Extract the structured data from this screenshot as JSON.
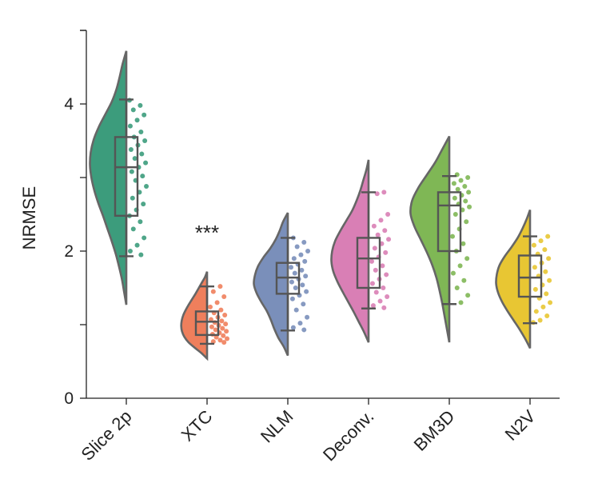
{
  "chart_data": {
    "type": "raincloud",
    "title": "",
    "xlabel": "",
    "ylabel": "NRMSE",
    "ylim": [
      0,
      5
    ],
    "yticks": [
      0,
      2,
      4
    ],
    "categories": [
      "Slice 2p",
      "XTC",
      "NLM",
      "Deconv.",
      "BM3D",
      "N2V"
    ],
    "colors": [
      "#3c9c7c",
      "#ef7f5c",
      "#7a8fba",
      "#d97fb5",
      "#7fb755",
      "#e8c633"
    ],
    "annotation": {
      "text": "***",
      "category": "XTC",
      "y": 2.35
    },
    "series": [
      {
        "name": "Slice 2p",
        "box": {
          "whisker_low": 1.93,
          "q1": 2.48,
          "median": 3.14,
          "q3": 3.55,
          "whisker_high": 4.06
        },
        "violin": {
          "min": 1.27,
          "max": 4.72,
          "max_halfwidth": 0.45,
          "profile": [
            0.0,
            0.06,
            0.12,
            0.2,
            0.29,
            0.4,
            0.52,
            0.64,
            0.77,
            0.88,
            0.96,
            1.0,
            0.98,
            0.9,
            0.76,
            0.58,
            0.4,
            0.27,
            0.18,
            0.1,
            0.0
          ]
        },
        "points": [
          4.05,
          3.98,
          3.92,
          3.85,
          3.78,
          3.7,
          3.62,
          3.55,
          3.5,
          3.44,
          3.38,
          3.32,
          3.26,
          3.2,
          3.14,
          3.08,
          3.02,
          2.96,
          2.88,
          2.8,
          2.72,
          2.64,
          2.56,
          2.48,
          2.4,
          2.3,
          2.18,
          2.08,
          2.0,
          1.95
        ]
      },
      {
        "name": "XTC",
        "box": {
          "whisker_low": 0.74,
          "q1": 0.86,
          "median": 1.04,
          "q3": 1.18,
          "whisker_high": 1.52
        },
        "violin": {
          "min": 0.54,
          "max": 1.72,
          "max_halfwidth": 0.32,
          "profile": [
            0.0,
            0.22,
            0.48,
            0.72,
            0.88,
            0.97,
            1.0,
            0.98,
            0.92,
            0.82,
            0.7,
            0.57,
            0.44,
            0.32,
            0.2,
            0.08,
            0.0
          ]
        },
        "points": [
          1.52,
          1.45,
          1.38,
          1.3,
          1.24,
          1.2,
          1.16,
          1.13,
          1.1,
          1.07,
          1.05,
          1.03,
          1.01,
          0.99,
          0.97,
          0.95,
          0.93,
          0.91,
          0.89,
          0.87,
          0.85,
          0.83,
          0.81,
          0.79,
          0.77,
          0.76
        ]
      },
      {
        "name": "NLM",
        "box": {
          "whisker_low": 0.92,
          "q1": 1.42,
          "median": 1.64,
          "q3": 1.84,
          "whisker_high": 2.18
        },
        "violin": {
          "min": 0.58,
          "max": 2.52,
          "max_halfwidth": 0.42,
          "profile": [
            0.0,
            0.12,
            0.28,
            0.4,
            0.5,
            0.62,
            0.78,
            0.92,
            1.0,
            0.97,
            0.88,
            0.72,
            0.52,
            0.36,
            0.24,
            0.14,
            0.0
          ]
        },
        "points": [
          2.18,
          2.12,
          2.06,
          2.0,
          1.95,
          1.9,
          1.86,
          1.82,
          1.78,
          1.74,
          1.7,
          1.66,
          1.62,
          1.58,
          1.54,
          1.5,
          1.45,
          1.4,
          1.35,
          1.28,
          1.2,
          1.1,
          1.02,
          0.96,
          0.93
        ]
      },
      {
        "name": "Deconv.",
        "box": {
          "whisker_low": 1.22,
          "q1": 1.5,
          "median": 1.9,
          "q3": 2.18,
          "whisker_high": 2.8
        },
        "violin": {
          "min": 0.76,
          "max": 3.24,
          "max_halfwidth": 0.46,
          "profile": [
            0.0,
            0.12,
            0.26,
            0.4,
            0.55,
            0.7,
            0.84,
            0.95,
            1.0,
            0.98,
            0.9,
            0.76,
            0.6,
            0.44,
            0.32,
            0.22,
            0.14,
            0.06,
            0.0
          ]
        },
        "points": [
          2.8,
          2.78,
          2.5,
          2.42,
          2.34,
          2.28,
          2.22,
          2.16,
          2.1,
          2.04,
          1.98,
          1.92,
          1.86,
          1.8,
          1.74,
          1.68,
          1.62,
          1.56,
          1.5,
          1.44,
          1.38,
          1.32,
          1.26,
          1.23
        ]
      },
      {
        "name": "BM3D",
        "box": {
          "whisker_low": 1.28,
          "q1": 2.0,
          "median": 2.62,
          "q3": 2.8,
          "whisker_high": 3.02
        },
        "violin": {
          "min": 0.76,
          "max": 3.56,
          "max_halfwidth": 0.48,
          "profile": [
            0.0,
            0.06,
            0.12,
            0.18,
            0.25,
            0.33,
            0.44,
            0.58,
            0.74,
            0.9,
            1.0,
            0.96,
            0.8,
            0.58,
            0.36,
            0.18,
            0.0
          ]
        },
        "points": [
          3.04,
          3.0,
          2.96,
          2.92,
          2.88,
          2.84,
          2.8,
          2.76,
          2.72,
          2.68,
          2.64,
          2.6,
          2.56,
          2.5,
          2.4,
          2.3,
          2.2,
          2.1,
          2.0,
          1.9,
          1.8,
          1.7,
          1.6,
          1.5,
          1.4,
          1.3
        ]
      },
      {
        "name": "N2V",
        "box": {
          "whisker_low": 1.02,
          "q1": 1.38,
          "median": 1.64,
          "q3": 1.94,
          "whisker_high": 2.2
        },
        "violin": {
          "min": 0.68,
          "max": 2.56,
          "max_halfwidth": 0.42,
          "profile": [
            0.0,
            0.14,
            0.3,
            0.48,
            0.66,
            0.82,
            0.94,
            1.0,
            0.98,
            0.9,
            0.74,
            0.54,
            0.36,
            0.22,
            0.1,
            0.0
          ]
        },
        "points": [
          2.2,
          2.14,
          2.08,
          2.02,
          1.96,
          1.9,
          1.84,
          1.78,
          1.72,
          1.66,
          1.6,
          1.54,
          1.48,
          1.42,
          1.36,
          1.3,
          1.24,
          1.18,
          1.12,
          1.06,
          1.03
        ]
      }
    ]
  }
}
